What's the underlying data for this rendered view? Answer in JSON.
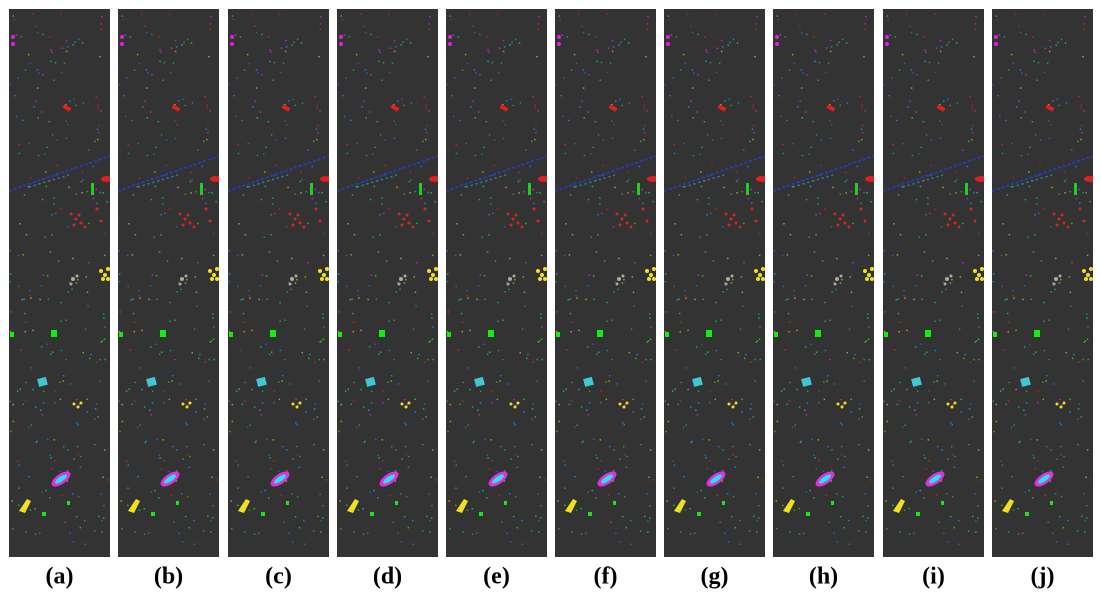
{
  "panels": [
    {
      "label": "(a)"
    },
    {
      "label": "(b)"
    },
    {
      "label": "(c)"
    },
    {
      "label": "(d)"
    },
    {
      "label": "(e)"
    },
    {
      "label": "(f)"
    },
    {
      "label": "(g)"
    },
    {
      "label": "(h)"
    },
    {
      "label": "(i)"
    },
    {
      "label": "(j)"
    }
  ]
}
